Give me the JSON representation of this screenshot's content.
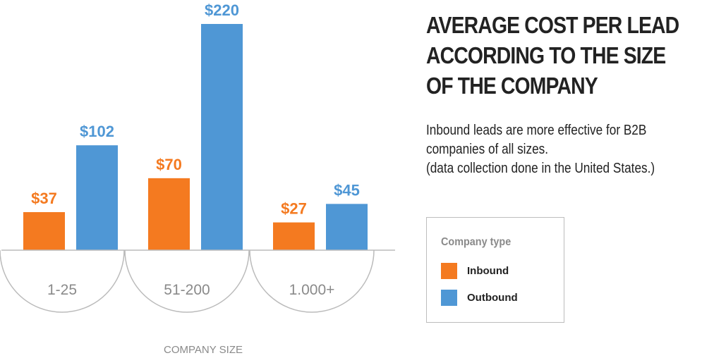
{
  "chart_data": {
    "type": "bar",
    "title": [
      "AVERAGE COST PER LEAD",
      "ACCORDING TO THE SIZE",
      "OF THE COMPANY"
    ],
    "subtitle": [
      "Inbound leads are more effective for B2B",
      "companies of all sizes.",
      "(data collection done in the United States.)"
    ],
    "xlabel": "COMPANY SIZE",
    "ylabel": "",
    "categories": [
      "1-25",
      "51-200",
      "1.000+"
    ],
    "series": [
      {
        "name": "Inbound",
        "values": [
          37,
          70,
          27
        ],
        "labels": [
          "$37",
          "$70",
          "$27"
        ],
        "color": "#f47a20"
      },
      {
        "name": "Outbound",
        "values": [
          102,
          220,
          45
        ],
        "labels": [
          "$102",
          "$220",
          "$45"
        ],
        "color": "#4f97d5"
      }
    ],
    "ylim": [
      0,
      220
    ],
    "grid": false,
    "legend": {
      "title": "Company type",
      "placement": "right"
    }
  },
  "colors": {
    "inbound": "#f47a20",
    "outbound": "#4f97d5",
    "axis": "#bbbbbb",
    "category_text": "#8a8a8a",
    "title_text": "#222222"
  }
}
